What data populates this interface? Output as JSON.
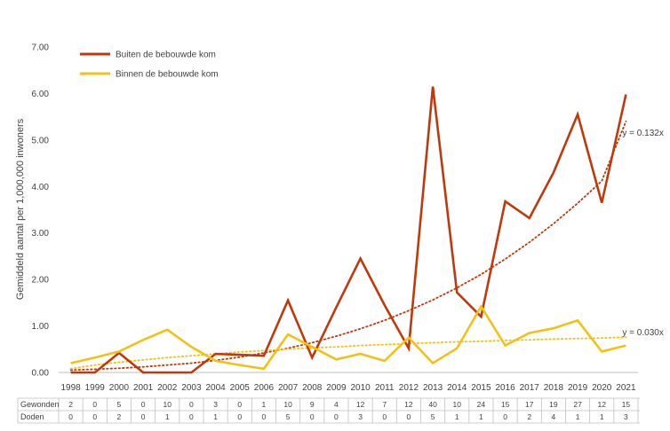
{
  "chart_data": {
    "type": "line",
    "title": "",
    "ylabel": "Gemiddeld aantal per 1,000,000 inwoners",
    "ylim": [
      0,
      7
    ],
    "yticks": [
      "0.00",
      "1.00",
      "2.00",
      "3.00",
      "4.00",
      "5.00",
      "6.00",
      "7.00"
    ],
    "grid": false,
    "legend_position": "top-left",
    "x": [
      "1998",
      "1999",
      "2000",
      "2001",
      "2002",
      "2003",
      "2004",
      "2005",
      "2006",
      "2007",
      "2008",
      "2009",
      "2010",
      "2011",
      "2012",
      "2013",
      "2014",
      "2015",
      "2016",
      "2017",
      "2018",
      "2019",
      "2020",
      "2021"
    ],
    "series": [
      {
        "name": "Buiten de bebouwde kom",
        "color": "#C0390B",
        "values": [
          0.0,
          0.0,
          0.42,
          0.0,
          0.0,
          0.0,
          0.4,
          0.38,
          0.36,
          1.55,
          0.32,
          1.4,
          2.45,
          1.45,
          0.52,
          6.15,
          1.72,
          1.2,
          3.68,
          3.32,
          4.3,
          5.55,
          3.65,
          5.98
        ],
        "trendline": {
          "style": "dotted",
          "label": "y = 0.132x",
          "values": [
            0.05,
            0.07,
            0.09,
            0.12,
            0.16,
            0.2,
            0.26,
            0.33,
            0.42,
            0.52,
            0.64,
            0.78,
            0.94,
            1.12,
            1.33,
            1.56,
            1.82,
            2.11,
            2.44,
            2.8,
            3.2,
            3.64,
            4.12,
            5.4
          ]
        }
      },
      {
        "name": "Binnen de bebouwde kom",
        "color": "#F2C118",
        "values": [
          0.2,
          0.32,
          0.45,
          0.7,
          0.92,
          0.55,
          0.25,
          0.16,
          0.08,
          0.82,
          0.55,
          0.28,
          0.4,
          0.25,
          0.75,
          0.2,
          0.52,
          1.42,
          0.58,
          0.85,
          0.95,
          1.12,
          0.45,
          0.58
        ],
        "trendline": {
          "style": "dotted",
          "label": "y = 0.030x",
          "values": [
            0.08,
            0.16,
            0.22,
            0.27,
            0.32,
            0.36,
            0.4,
            0.44,
            0.47,
            0.5,
            0.53,
            0.55,
            0.58,
            0.6,
            0.62,
            0.64,
            0.66,
            0.67,
            0.69,
            0.7,
            0.72,
            0.73,
            0.74,
            0.76
          ]
        }
      }
    ],
    "table": {
      "rows": [
        {
          "label": "Gewonden",
          "values": [
            "2",
            "0",
            "5",
            "0",
            "10",
            "0",
            "3",
            "0",
            "1",
            "10",
            "9",
            "4",
            "12",
            "7",
            "12",
            "40",
            "10",
            "24",
            "15",
            "17",
            "19",
            "27",
            "12",
            "15"
          ]
        },
        {
          "label": "Doden",
          "values": [
            "0",
            "0",
            "2",
            "0",
            "1",
            "0",
            "1",
            "0",
            "0",
            "5",
            "0",
            "0",
            "3",
            "0",
            "0",
            "5",
            "1",
            "1",
            "0",
            "2",
            "4",
            "1",
            "1",
            "3"
          ]
        }
      ]
    }
  }
}
